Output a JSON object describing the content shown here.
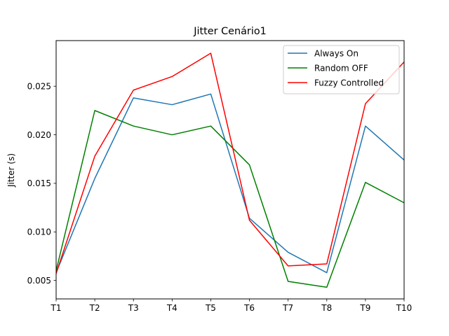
{
  "chart_data": {
    "type": "line",
    "title": "Jitter Cenário1",
    "xlabel": "",
    "ylabel": "Jitter (s)",
    "categories": [
      "T1",
      "T2",
      "T3",
      "T4",
      "T5",
      "T6",
      "T7",
      "T8",
      "T9",
      "T10"
    ],
    "xlim": [
      0,
      9
    ],
    "ylim": [
      0.0031,
      0.0297
    ],
    "yticks": [
      0.005,
      0.01,
      0.015,
      0.02,
      0.025
    ],
    "ytick_labels": [
      "0.005",
      "0.010",
      "0.015",
      "0.020",
      "0.025"
    ],
    "grid": false,
    "legend_position": "top-right",
    "series": [
      {
        "name": "Always On",
        "color": "#1f77b4",
        "values": [
          0.0058,
          0.0155,
          0.0238,
          0.0231,
          0.0242,
          0.0114,
          0.0079,
          0.0058,
          0.0209,
          0.0174
        ]
      },
      {
        "name": "Random OFF",
        "color": "#008000",
        "values": [
          0.006,
          0.0225,
          0.0209,
          0.02,
          0.0209,
          0.0169,
          0.0049,
          0.0043,
          0.0151,
          0.013
        ]
      },
      {
        "name": "Fuzzy Controlled",
        "color": "#ff0000",
        "values": [
          0.0057,
          0.0178,
          0.0246,
          0.026,
          0.0284,
          0.0112,
          0.0065,
          0.0067,
          0.0232,
          0.0275
        ]
      }
    ]
  }
}
